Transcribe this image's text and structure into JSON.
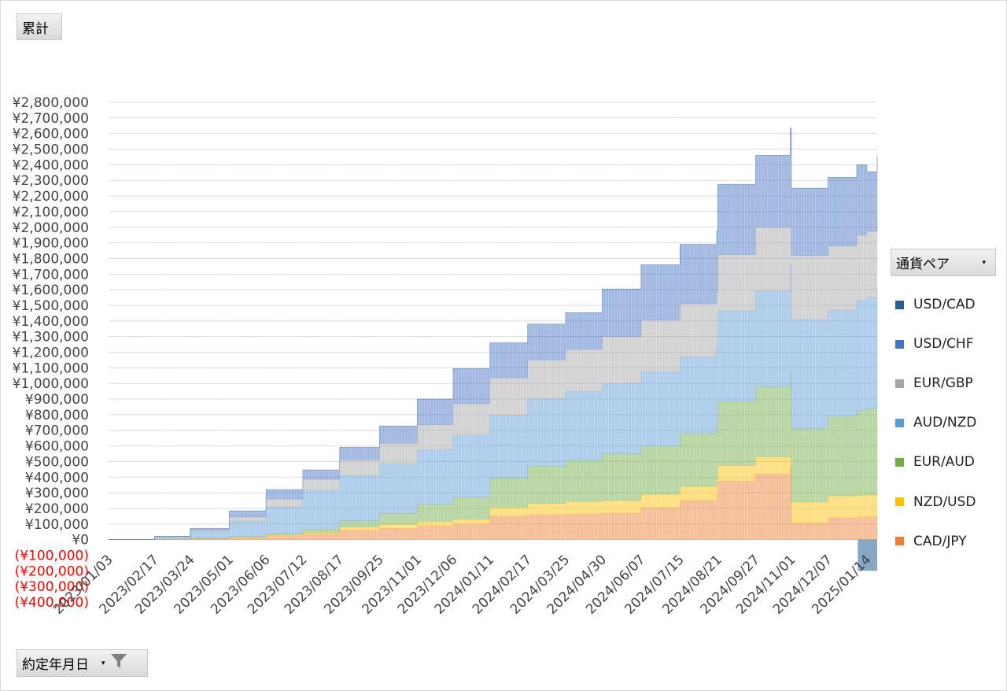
{
  "value_field": "累計",
  "legend_field": "通貨ペア",
  "axis_field": "約定年月日",
  "chart_data": {
    "type": "area",
    "stacked": true,
    "ylim": [
      -400000,
      2800000
    ],
    "y_ticks": [
      {
        "v": 2800000,
        "label": "¥2,800,000"
      },
      {
        "v": 2700000,
        "label": "¥2,700,000"
      },
      {
        "v": 2600000,
        "label": "¥2,600,000"
      },
      {
        "v": 2500000,
        "label": "¥2,500,000"
      },
      {
        "v": 2400000,
        "label": "¥2,400,000"
      },
      {
        "v": 2300000,
        "label": "¥2,300,000"
      },
      {
        "v": 2200000,
        "label": "¥2,200,000"
      },
      {
        "v": 2100000,
        "label": "¥2,100,000"
      },
      {
        "v": 2000000,
        "label": "¥2,000,000"
      },
      {
        "v": 1900000,
        "label": "¥1,900,000"
      },
      {
        "v": 1800000,
        "label": "¥1,800,000"
      },
      {
        "v": 1700000,
        "label": "¥1,700,000"
      },
      {
        "v": 1600000,
        "label": "¥1,600,000"
      },
      {
        "v": 1500000,
        "label": "¥1,500,000"
      },
      {
        "v": 1400000,
        "label": "¥1,400,000"
      },
      {
        "v": 1300000,
        "label": "¥1,300,000"
      },
      {
        "v": 1200000,
        "label": "¥1,200,000"
      },
      {
        "v": 1100000,
        "label": "¥1,100,000"
      },
      {
        "v": 1000000,
        "label": "¥1,000,000"
      },
      {
        "v": 900000,
        "label": "¥900,000"
      },
      {
        "v": 800000,
        "label": "¥800,000"
      },
      {
        "v": 700000,
        "label": "¥700,000"
      },
      {
        "v": 600000,
        "label": "¥600,000"
      },
      {
        "v": 500000,
        "label": "¥500,000"
      },
      {
        "v": 400000,
        "label": "¥400,000"
      },
      {
        "v": 300000,
        "label": "¥300,000"
      },
      {
        "v": 200000,
        "label": "¥200,000"
      },
      {
        "v": 100000,
        "label": "¥100,000"
      },
      {
        "v": 0,
        "label": "¥0"
      },
      {
        "v": -100000,
        "label": "(¥100,000)"
      },
      {
        "v": -200000,
        "label": "(¥200,000)"
      },
      {
        "v": -300000,
        "label": "(¥300,000)"
      },
      {
        "v": -400000,
        "label": "(¥400,000)"
      }
    ],
    "negative_label_color": "#ff0000",
    "x_tick_labels": [
      "2023/01/03",
      "2023/02/17",
      "2023/03/24",
      "2023/05/01",
      "2023/06/06",
      "2023/07/12",
      "2023/08/17",
      "2023/09/25",
      "2023/11/01",
      "2023/12/06",
      "2024/01/11",
      "2024/02/17",
      "2024/03/25",
      "2024/04/30",
      "2024/06/07",
      "2024/07/15",
      "2024/08/21",
      "2024/09/27",
      "2024/11/01",
      "2024/12/07",
      "2025/01/14"
    ],
    "x_dates": [
      "2023/01/03",
      "2023/02/17",
      "2023/03/24",
      "2023/05/01",
      "2023/06/06",
      "2023/07/12",
      "2023/08/17",
      "2023/09/25",
      "2023/11/01",
      "2023/12/06",
      "2024/01/11",
      "2024/02/17",
      "2024/03/25",
      "2024/04/30",
      "2024/06/07",
      "2024/07/15",
      "2024/08/20",
      "2024/08/21",
      "2024/09/27",
      "2024/10/31",
      "2024/11/01",
      "2024/12/07",
      "2025/01/04",
      "2025/01/05",
      "2025/01/14",
      "2025/01/24"
    ],
    "series": [
      {
        "name": "CAD/JPY",
        "color": "#ed7d31",
        "values": [
          0,
          2000,
          5000,
          12000,
          25000,
          38000,
          60000,
          72000,
          88000,
          100000,
          150000,
          160000,
          165000,
          170000,
          205000,
          250000,
          290000,
          375000,
          420000,
          470000,
          105000,
          140000,
          145000,
          145000,
          145000,
          150000
        ]
      },
      {
        "name": "NZD/USD",
        "color": "#ffc000",
        "values": [
          0,
          500,
          1000,
          2000,
          5000,
          8000,
          20000,
          25000,
          28000,
          30000,
          55000,
          70000,
          78000,
          80000,
          85000,
          90000,
          95000,
          100000,
          110000,
          130000,
          135000,
          140000,
          140000,
          140000,
          140000,
          140000
        ]
      },
      {
        "name": "EUR/AUD",
        "color": "#70ad47",
        "values": [
          0,
          1000,
          2000,
          5000,
          10000,
          20000,
          40000,
          70000,
          110000,
          140000,
          190000,
          240000,
          265000,
          300000,
          310000,
          340000,
          355000,
          410000,
          450000,
          470000,
          470000,
          510000,
          540000,
          540000,
          555000,
          575000
        ]
      },
      {
        "name": "AUD/NZD",
        "color": "#5b9bd5",
        "values": [
          0,
          12000,
          40000,
          100000,
          170000,
          250000,
          290000,
          320000,
          350000,
          400000,
          400000,
          430000,
          440000,
          450000,
          475000,
          490000,
          490000,
          580000,
          610000,
          690000,
          700000,
          680000,
          705000,
          705000,
          710000,
          740000
        ]
      },
      {
        "name": "EUR/GBP",
        "color": "#a5a5a5",
        "values": [
          0,
          3000,
          8000,
          25000,
          50000,
          70000,
          100000,
          130000,
          160000,
          200000,
          240000,
          250000,
          270000,
          300000,
          330000,
          340000,
          350000,
          360000,
          410000,
          430000,
          410000,
          410000,
          420000,
          420000,
          425000,
          435000
        ]
      },
      {
        "name": "USD/CHF",
        "color": "#4472c4",
        "values": [
          0,
          3000,
          15000,
          40000,
          60000,
          60000,
          80000,
          110000,
          164000,
          225000,
          225000,
          230000,
          235000,
          305000,
          355000,
          380000,
          395000,
          450000,
          460000,
          445000,
          430000,
          440000,
          450000,
          450000,
          380000,
          420000
        ]
      },
      {
        "name": "USD/CAD",
        "color": "#255e91",
        "values": [
          0,
          0,
          0,
          0,
          0,
          0,
          0,
          0,
          0,
          0,
          0,
          0,
          0,
          0,
          0,
          0,
          0,
          0,
          0,
          0,
          0,
          0,
          0,
          -200000,
          -200000,
          0
        ]
      }
    ],
    "legend_position": "right",
    "grid": true
  }
}
